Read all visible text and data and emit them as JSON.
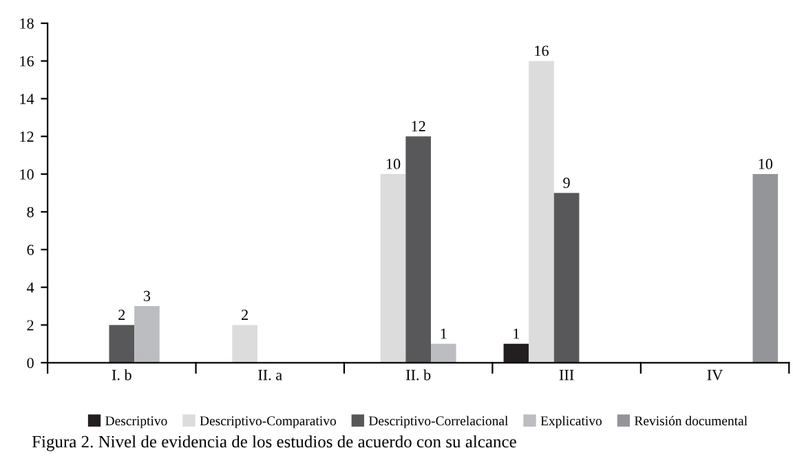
{
  "chart_data": {
    "type": "bar",
    "categories": [
      "I. b",
      "II. a",
      "II. b",
      "III",
      "IV"
    ],
    "series": [
      {
        "name": "Descriptivo",
        "color": "#231f20",
        "values": [
          null,
          null,
          null,
          1,
          null
        ]
      },
      {
        "name": "Descriptivo-Comparativo",
        "color": "#dcdcdd",
        "values": [
          null,
          2,
          10,
          16,
          null
        ]
      },
      {
        "name": "Descriptivo-Correlacional",
        "color": "#58585a",
        "values": [
          2,
          null,
          12,
          9,
          null
        ]
      },
      {
        "name": "Explicativo",
        "color": "#bcbdc0",
        "values": [
          3,
          null,
          1,
          null,
          null
        ]
      },
      {
        "name": "Revisión documental",
        "color": "#939598",
        "values": [
          null,
          null,
          null,
          null,
          10
        ]
      }
    ],
    "ylim": [
      0,
      18
    ],
    "yticks": [
      0,
      2,
      4,
      6,
      8,
      10,
      12,
      14,
      16,
      18
    ],
    "data_labels": true,
    "legend": "bottom",
    "grid": false,
    "annotations": [
      "Figura 2. Nivel de evidencia de los estudios de acuerdo con su alcance"
    ]
  }
}
